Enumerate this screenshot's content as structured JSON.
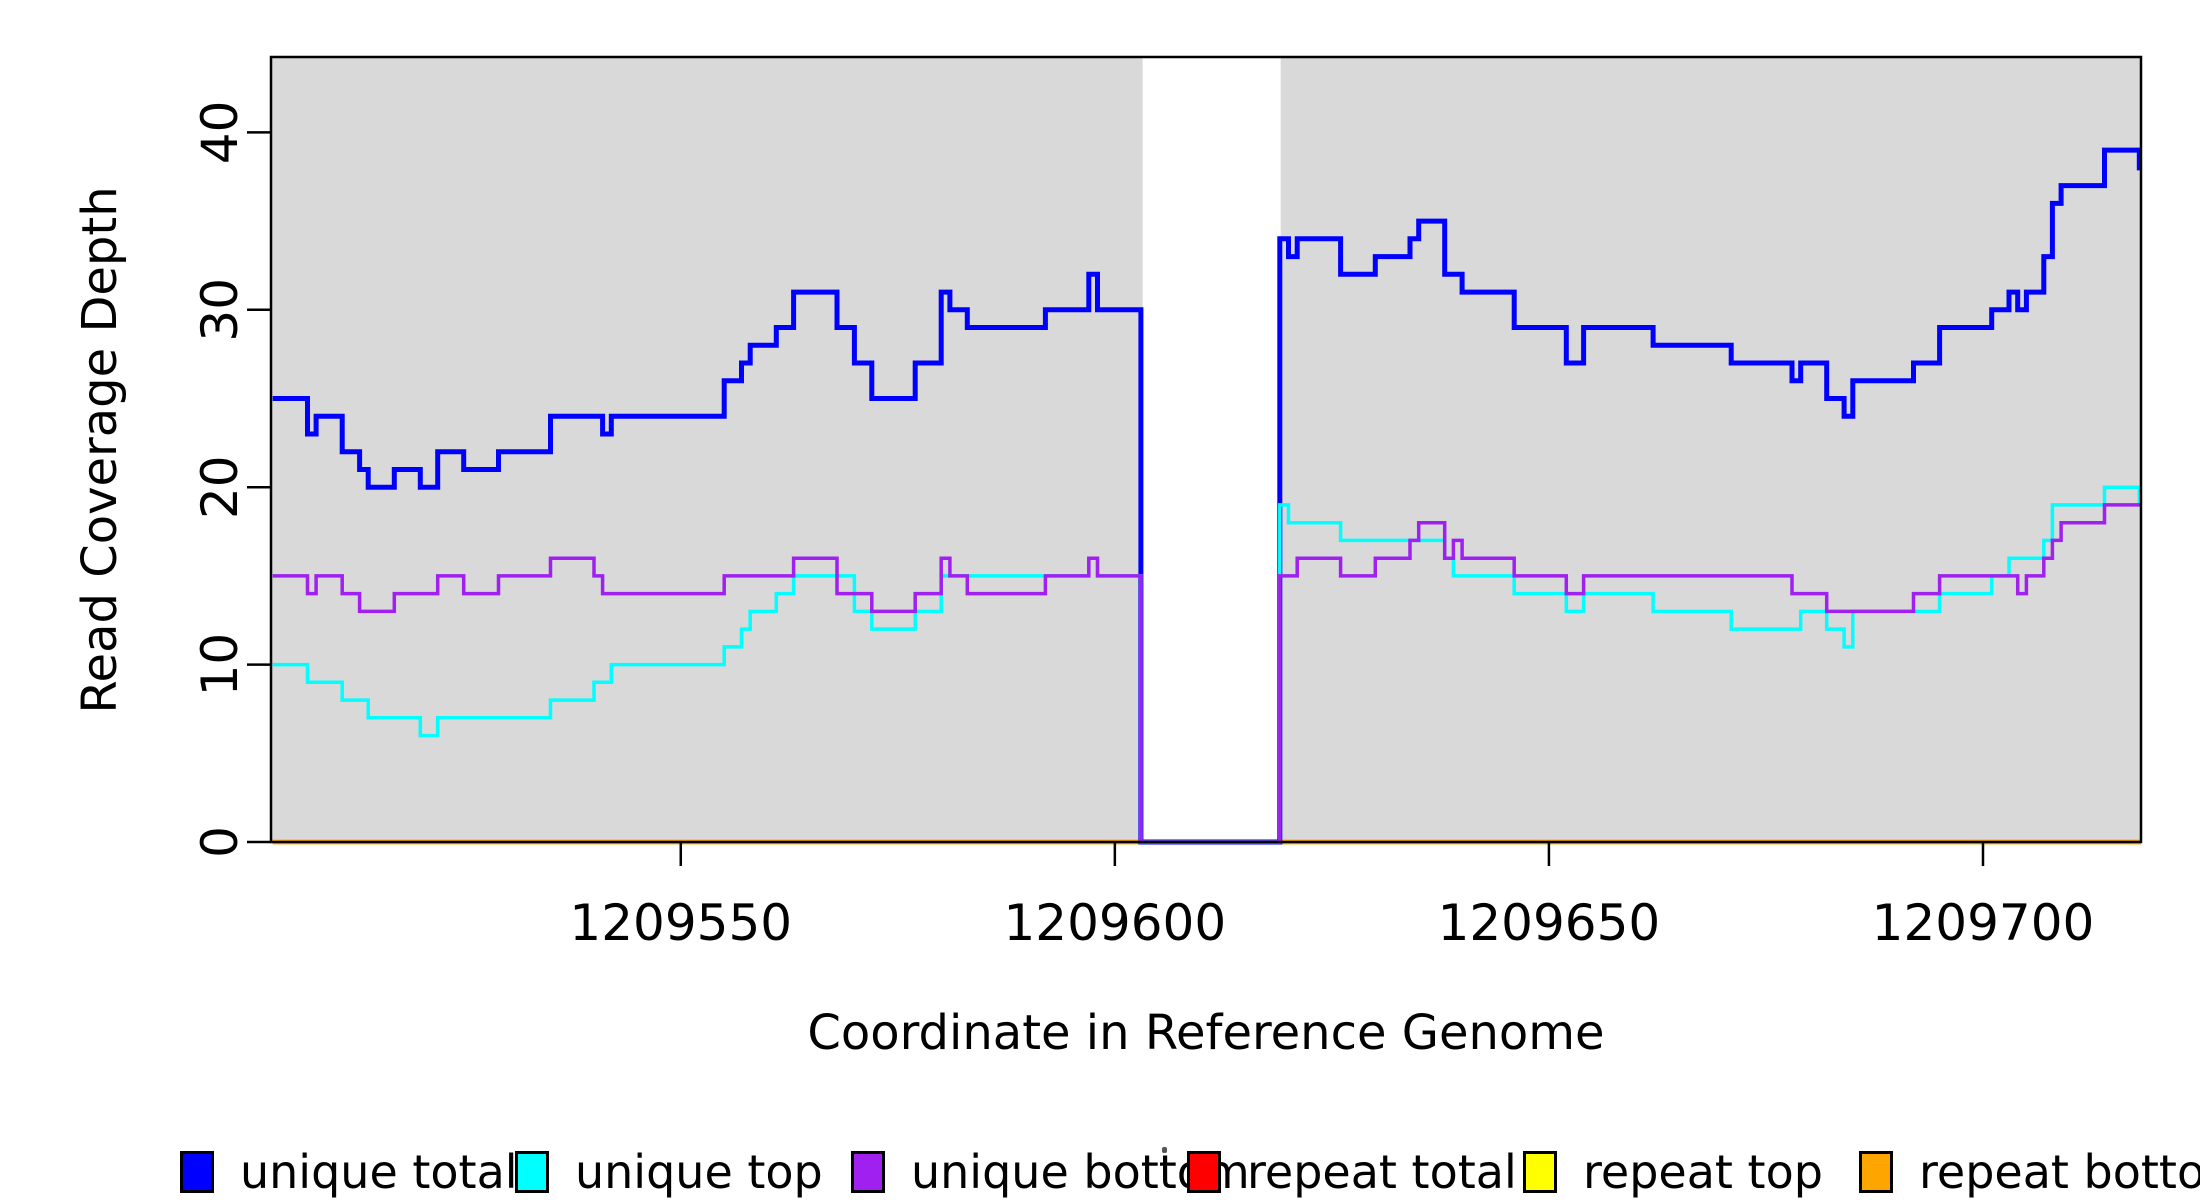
{
  "chart_data": {
    "type": "line",
    "subtype": "step-coverage-plot",
    "title": "",
    "xlabel": "Coordinate in Reference Genome",
    "ylabel": "Read Coverage Depth",
    "xlim": [
      1209502.8,
      1209718.2
    ],
    "ylim": [
      0,
      44.25
    ],
    "grid": false,
    "legend_position": "bottom",
    "x_ticks": [
      "1209550",
      "1209600",
      "1209650",
      "1209700"
    ],
    "x_tick_values": [
      1209550,
      1209600,
      1209650,
      1209700
    ],
    "y_ticks": [
      "0",
      "10",
      "20",
      "30",
      "40"
    ],
    "y_tick_values": [
      0,
      10,
      20,
      30,
      40
    ],
    "background_regions": {
      "color": "#D9D9D9",
      "ranges": [
        [
          1209502.8,
          1209603.2
        ],
        [
          1209619.1,
          1209718.2
        ]
      ]
    },
    "gap_region": [
      1209603.2,
      1209619.1
    ],
    "draw_order": [
      3,
      4,
      5,
      0,
      1,
      2
    ],
    "series": [
      {
        "id": "unique-total",
        "label": "unique total",
        "color": "#0000FF",
        "stroke_width": 5,
        "segments": [
          [
            1209503,
            1209506,
            25
          ],
          [
            1209507,
            1209507,
            23
          ],
          [
            1209508,
            1209510,
            24
          ],
          [
            1209511,
            1209512,
            22
          ],
          [
            1209513,
            1209513,
            21
          ],
          [
            1209514,
            1209516,
            20
          ],
          [
            1209517,
            1209519,
            21
          ],
          [
            1209520,
            1209521,
            20
          ],
          [
            1209522,
            1209524,
            22
          ],
          [
            1209525,
            1209528,
            21
          ],
          [
            1209529,
            1209534,
            22
          ],
          [
            1209535,
            1209540,
            24
          ],
          [
            1209541,
            1209541,
            23
          ],
          [
            1209542,
            1209554,
            24
          ],
          [
            1209555,
            1209556,
            26
          ],
          [
            1209557,
            1209557,
            27
          ],
          [
            1209558,
            1209560,
            28
          ],
          [
            1209561,
            1209562,
            29
          ],
          [
            1209563,
            1209567,
            31
          ],
          [
            1209568,
            1209569,
            29
          ],
          [
            1209570,
            1209571,
            27
          ],
          [
            1209572,
            1209576,
            25
          ],
          [
            1209577,
            1209579,
            27
          ],
          [
            1209580,
            1209580,
            31
          ],
          [
            1209581,
            1209582,
            30
          ],
          [
            1209583,
            1209591,
            29
          ],
          [
            1209592,
            1209596,
            30
          ],
          [
            1209597,
            1209597,
            32
          ],
          [
            1209598,
            1209602,
            30
          ],
          [
            1209603,
            1209618,
            0
          ],
          [
            1209619,
            1209619,
            34
          ],
          [
            1209620,
            1209620,
            33
          ],
          [
            1209621,
            1209625,
            34
          ],
          [
            1209626,
            1209629,
            32
          ],
          [
            1209630,
            1209633,
            33
          ],
          [
            1209634,
            1209634,
            34
          ],
          [
            1209635,
            1209637,
            35
          ],
          [
            1209638,
            1209639,
            32
          ],
          [
            1209640,
            1209645,
            31
          ],
          [
            1209646,
            1209651,
            29
          ],
          [
            1209652,
            1209653,
            27
          ],
          [
            1209654,
            1209661,
            29
          ],
          [
            1209662,
            1209670,
            28
          ],
          [
            1209671,
            1209677,
            27
          ],
          [
            1209678,
            1209678,
            26
          ],
          [
            1209679,
            1209681,
            27
          ],
          [
            1209682,
            1209683,
            25
          ],
          [
            1209684,
            1209684,
            24
          ],
          [
            1209685,
            1209691,
            26
          ],
          [
            1209692,
            1209694,
            27
          ],
          [
            1209695,
            1209700,
            29
          ],
          [
            1209701,
            1209702,
            30
          ],
          [
            1209703,
            1209703,
            31
          ],
          [
            1209704,
            1209704,
            30
          ],
          [
            1209705,
            1209706,
            31
          ],
          [
            1209707,
            1209707,
            33
          ],
          [
            1209708,
            1209708,
            36
          ],
          [
            1209709,
            1209713,
            37
          ],
          [
            1209714,
            1209717,
            39
          ],
          [
            1209718,
            1209718,
            38
          ]
        ]
      },
      {
        "id": "unique-top",
        "label": "unique top",
        "color": "#00FFFF",
        "stroke_width": 3.5,
        "segments": [
          [
            1209503,
            1209506,
            10
          ],
          [
            1209507,
            1209510,
            9
          ],
          [
            1209511,
            1209513,
            8
          ],
          [
            1209514,
            1209519,
            7
          ],
          [
            1209520,
            1209521,
            6
          ],
          [
            1209522,
            1209534,
            7
          ],
          [
            1209535,
            1209539,
            8
          ],
          [
            1209540,
            1209541,
            9
          ],
          [
            1209542,
            1209554,
            10
          ],
          [
            1209555,
            1209556,
            11
          ],
          [
            1209557,
            1209557,
            12
          ],
          [
            1209558,
            1209560,
            13
          ],
          [
            1209561,
            1209562,
            14
          ],
          [
            1209563,
            1209569,
            15
          ],
          [
            1209570,
            1209571,
            13
          ],
          [
            1209572,
            1209576,
            12
          ],
          [
            1209577,
            1209579,
            13
          ],
          [
            1209580,
            1209596,
            15
          ],
          [
            1209597,
            1209597,
            16
          ],
          [
            1209598,
            1209602,
            15
          ],
          [
            1209603,
            1209618,
            0
          ],
          [
            1209619,
            1209619,
            19
          ],
          [
            1209620,
            1209625,
            18
          ],
          [
            1209626,
            1209637,
            17
          ],
          [
            1209638,
            1209638,
            16
          ],
          [
            1209639,
            1209645,
            15
          ],
          [
            1209646,
            1209651,
            14
          ],
          [
            1209652,
            1209653,
            13
          ],
          [
            1209654,
            1209661,
            14
          ],
          [
            1209662,
            1209670,
            13
          ],
          [
            1209671,
            1209678,
            12
          ],
          [
            1209679,
            1209681,
            13
          ],
          [
            1209682,
            1209683,
            12
          ],
          [
            1209684,
            1209684,
            11
          ],
          [
            1209685,
            1209694,
            13
          ],
          [
            1209695,
            1209700,
            14
          ],
          [
            1209701,
            1209702,
            15
          ],
          [
            1209703,
            1209706,
            16
          ],
          [
            1209707,
            1209707,
            17
          ],
          [
            1209708,
            1209713,
            19
          ],
          [
            1209714,
            1209717,
            20
          ],
          [
            1209718,
            1209718,
            19
          ]
        ]
      },
      {
        "id": "unique-bottom",
        "label": "unique bottom",
        "color": "#A020F0",
        "stroke_width": 3.5,
        "segments": [
          [
            1209503,
            1209506,
            15
          ],
          [
            1209507,
            1209507,
            14
          ],
          [
            1209508,
            1209510,
            15
          ],
          [
            1209511,
            1209512,
            14
          ],
          [
            1209513,
            1209516,
            13
          ],
          [
            1209517,
            1209521,
            14
          ],
          [
            1209522,
            1209524,
            15
          ],
          [
            1209525,
            1209528,
            14
          ],
          [
            1209529,
            1209534,
            15
          ],
          [
            1209535,
            1209539,
            16
          ],
          [
            1209540,
            1209540,
            15
          ],
          [
            1209541,
            1209554,
            14
          ],
          [
            1209555,
            1209562,
            15
          ],
          [
            1209563,
            1209567,
            16
          ],
          [
            1209568,
            1209571,
            14
          ],
          [
            1209572,
            1209576,
            13
          ],
          [
            1209577,
            1209579,
            14
          ],
          [
            1209580,
            1209580,
            16
          ],
          [
            1209581,
            1209582,
            15
          ],
          [
            1209583,
            1209591,
            14
          ],
          [
            1209592,
            1209596,
            15
          ],
          [
            1209597,
            1209597,
            16
          ],
          [
            1209598,
            1209602,
            15
          ],
          [
            1209603,
            1209618,
            0
          ],
          [
            1209619,
            1209620,
            15
          ],
          [
            1209621,
            1209625,
            16
          ],
          [
            1209626,
            1209629,
            15
          ],
          [
            1209630,
            1209633,
            16
          ],
          [
            1209634,
            1209634,
            17
          ],
          [
            1209635,
            1209637,
            18
          ],
          [
            1209638,
            1209638,
            16
          ],
          [
            1209639,
            1209639,
            17
          ],
          [
            1209640,
            1209645,
            16
          ],
          [
            1209646,
            1209651,
            15
          ],
          [
            1209652,
            1209653,
            14
          ],
          [
            1209654,
            1209677,
            15
          ],
          [
            1209678,
            1209681,
            14
          ],
          [
            1209682,
            1209684,
            13
          ],
          [
            1209685,
            1209691,
            13
          ],
          [
            1209692,
            1209694,
            14
          ],
          [
            1209695,
            1209703,
            15
          ],
          [
            1209704,
            1209704,
            14
          ],
          [
            1209705,
            1209706,
            15
          ],
          [
            1209707,
            1209707,
            16
          ],
          [
            1209708,
            1209708,
            17
          ],
          [
            1209709,
            1209713,
            18
          ],
          [
            1209714,
            1209718,
            19
          ]
        ]
      },
      {
        "id": "repeat-total",
        "label": "repeat total",
        "color": "#FF0000",
        "stroke_width": 4.5,
        "segments": [
          [
            1209503,
            1209718,
            0
          ]
        ]
      },
      {
        "id": "repeat-top",
        "label": "repeat top",
        "color": "#FFFF00",
        "stroke_width": 4.5,
        "segments": [
          [
            1209503,
            1209718,
            0
          ]
        ]
      },
      {
        "id": "repeat-bottom",
        "label": "repeat bottom",
        "color": "#FFA500",
        "stroke_width": 4.5,
        "segments": [
          [
            1209503,
            1209718,
            0
          ]
        ]
      }
    ]
  }
}
